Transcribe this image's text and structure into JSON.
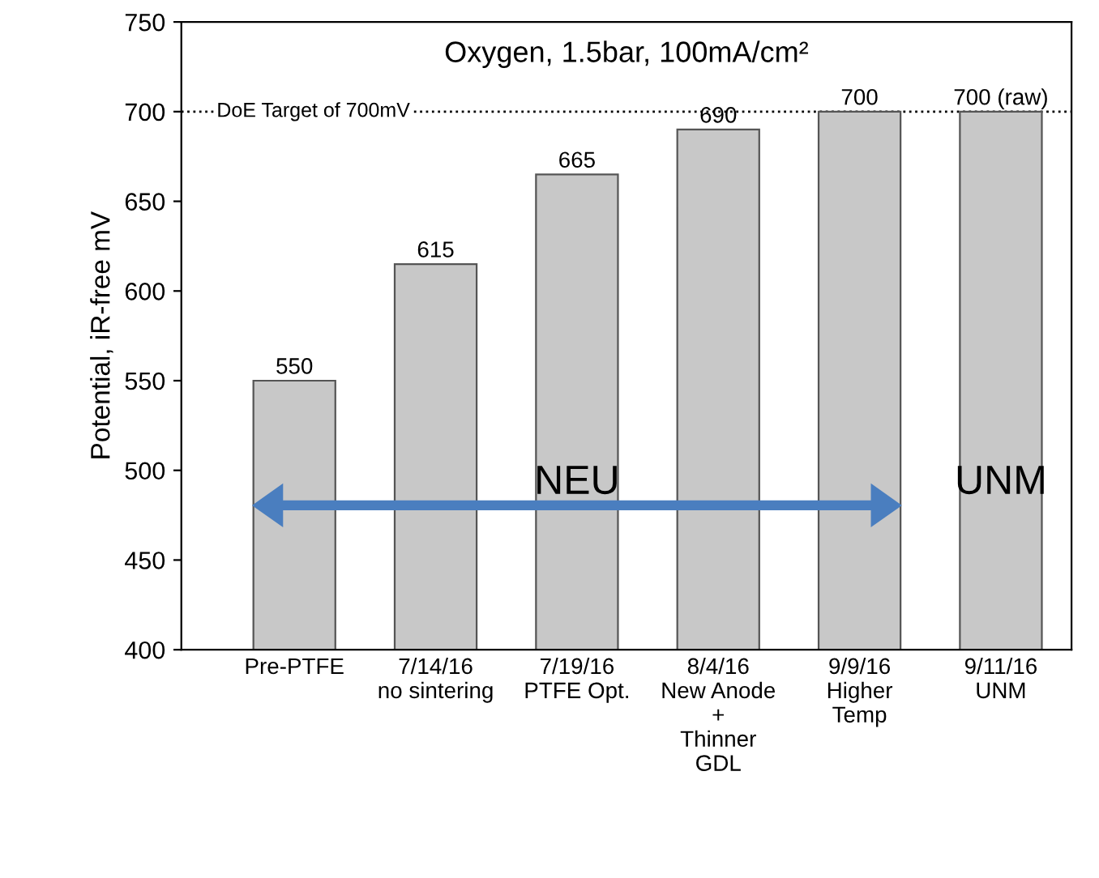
{
  "chart_data": {
    "type": "bar",
    "title": "Oxygen, 1.5bar, 100mA/cm²",
    "ylabel": "Potential, iR-free mV",
    "categories": [
      "Pre-PTFE",
      "7/14/16\nno sintering",
      "7/19/16\nPTFE Opt.",
      "8/4/16\nNew Anode\n+\nThinner\nGDL",
      "9/9/16\nHigher\nTemp",
      "9/11/16\nUNM"
    ],
    "values": [
      550,
      615,
      665,
      690,
      700,
      700
    ],
    "value_labels": [
      "550",
      "615",
      "665",
      "690",
      "700",
      "700 (raw)"
    ],
    "color": "#c8c8c8",
    "ylim": [
      400,
      750
    ],
    "yticks": [
      400,
      450,
      500,
      550,
      600,
      650,
      700,
      750
    ],
    "ref_lines": [
      {
        "axis": "y",
        "value": 700,
        "label": "DoE Target of 700mV",
        "color": "#000000",
        "line_style": "dotted"
      }
    ],
    "annotations": [
      "NEU",
      "UNM"
    ],
    "grid": false
  }
}
